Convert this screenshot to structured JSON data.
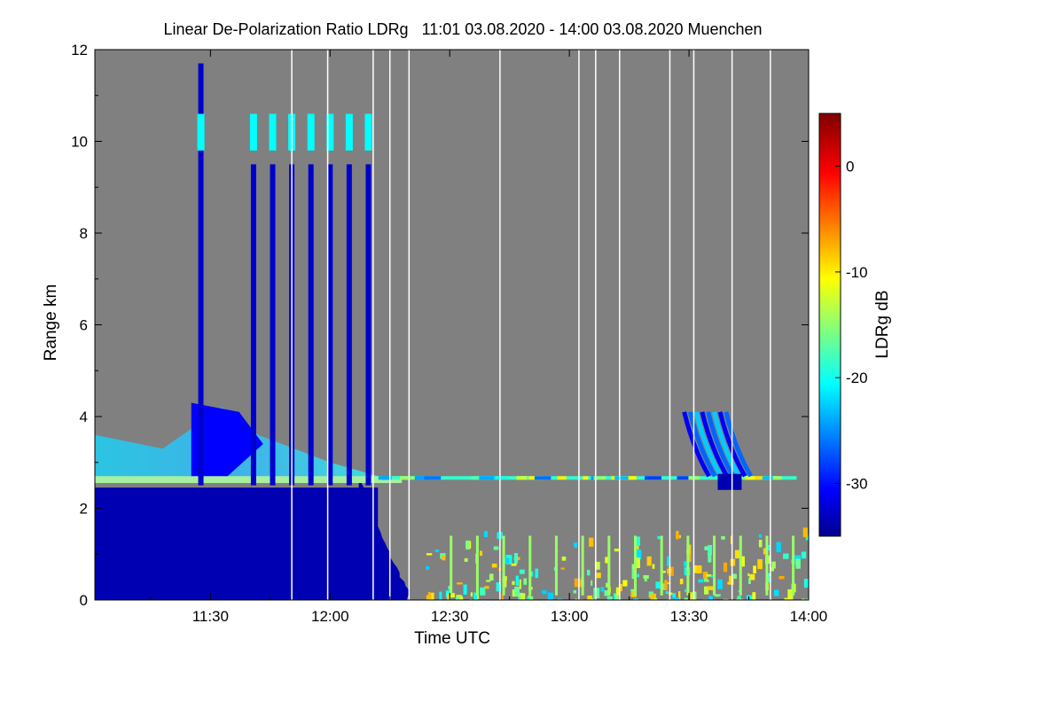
{
  "chart_data": {
    "type": "heatmap",
    "title": "Linear De-Polarization Ratio LDRg   11:01 03.08.2020 - 14:00 03.08.2020 Muenchen",
    "xlabel": "Time UTC",
    "ylabel": "Range km",
    "colorbar_label": "LDRg dB",
    "x_range_hours": [
      11.017,
      14.0
    ],
    "y_range_km": [
      0,
      12
    ],
    "x_ticks": [
      {
        "hours": 11.5,
        "label": "11:30"
      },
      {
        "hours": 12.0,
        "label": "12:00"
      },
      {
        "hours": 12.5,
        "label": "12:30"
      },
      {
        "hours": 13.0,
        "label": "13:00"
      },
      {
        "hours": 13.5,
        "label": "13:30"
      },
      {
        "hours": 14.0,
        "label": "14:00"
      }
    ],
    "y_ticks": [
      {
        "km": 0,
        "label": "0"
      },
      {
        "km": 2,
        "label": "2"
      },
      {
        "km": 4,
        "label": "4"
      },
      {
        "km": 6,
        "label": "6"
      },
      {
        "km": 8,
        "label": "8"
      },
      {
        "km": 10,
        "label": "10"
      },
      {
        "km": 12,
        "label": "12"
      }
    ],
    "colorbar_range_db": [
      -35,
      5
    ],
    "colorbar_ticks": [
      {
        "db": 0,
        "label": "0"
      },
      {
        "db": -10,
        "label": "-10"
      },
      {
        "db": -20,
        "label": "-20"
      },
      {
        "db": -30,
        "label": "-30"
      }
    ],
    "background_color": "#808080",
    "no_data_gaps_hours": [
      11.84,
      11.99,
      12.18,
      12.25,
      12.33,
      12.71,
      13.04,
      13.11,
      13.21,
      13.42,
      13.52,
      13.68,
      13.84
    ],
    "features": {
      "boundary_layer": {
        "time_hours": [
          11.017,
          12.2
        ],
        "top_km": 2.45,
        "ldr_db": -33
      },
      "aerosol_layer": {
        "time_hours": [
          11.017,
          12.2
        ],
        "base_km": 2.55,
        "top_km_start": 3.6,
        "top_km_end": 2.7,
        "ldr_db": -21
      },
      "cloud_layer_line": {
        "time_hours": [
          12.2,
          13.95
        ],
        "height_km": 2.65,
        "ldr_db": -18
      },
      "high_cloud_tops_km": 10.3,
      "precipitation_streaks_hours": [
        11.46,
        11.68,
        11.76,
        11.84,
        11.92,
        12.0,
        12.08,
        12.16
      ],
      "surface_clutter_hours": [
        12.4,
        14.0
      ]
    }
  }
}
